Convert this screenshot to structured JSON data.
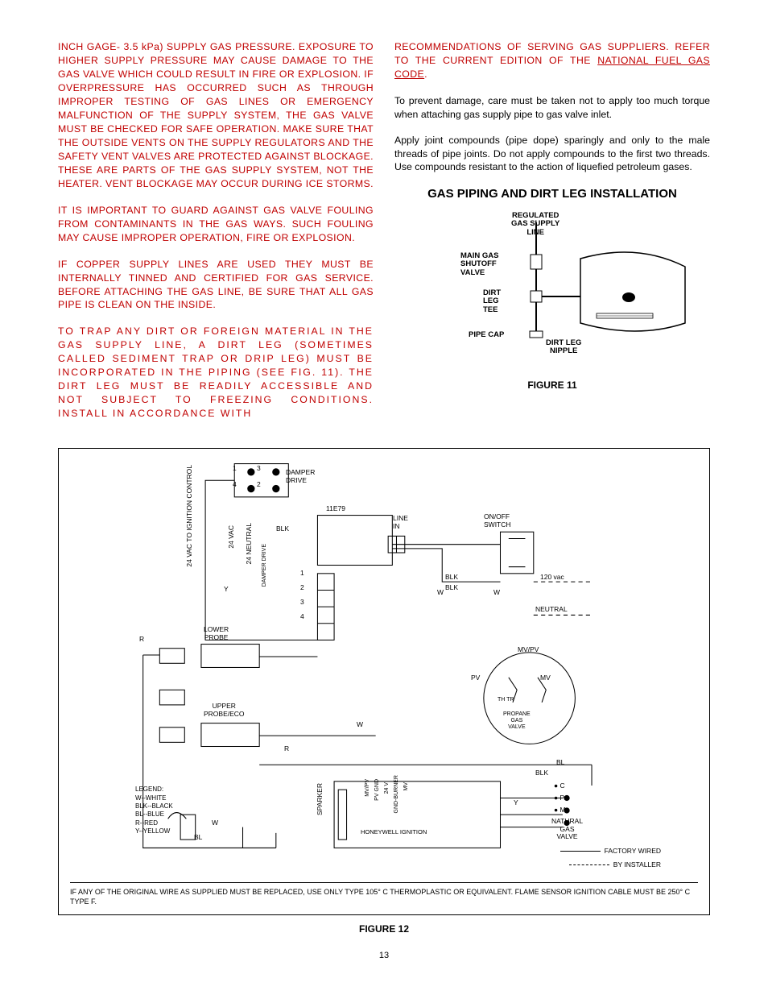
{
  "left_column": {
    "p1": "INCH GAGE- 3.5 kPa) SUPPLY GAS PRESSURE.  EXPOSURE TO HIGHER SUPPLY PRESSURE MAY CAUSE DAMAGE TO THE GAS VALVE WHICH COULD RESULT IN FIRE OR EXPLOSION.  IF OVERPRESSURE HAS OCCURRED SUCH AS THROUGH IMPROPER TESTING OF GAS LINES OR EMERGENCY MALFUNCTION OF THE SUPPLY SYSTEM, THE GAS VALVE MUST BE CHECKED FOR SAFE OPERATION.  MAKE SURE THAT THE OUTSIDE VENTS ON THE SUPPLY REGULATORS AND THE SAFETY  VENT VALVES ARE PROTECTED AGAINST BLOCKAGE.  THESE ARE PARTS OF THE GAS SUPPLY SYSTEM, NOT THE HEATER.  VENT BLOCKAGE MAY OCCUR DURING ICE STORMS.",
    "p2": "IT IS IMPORTANT TO GUARD AGAINST GAS VALVE FOULING FROM CONTAMINANTS IN THE GAS WAYS.  SUCH FOULING MAY CAUSE IMPROPER OPERATION, FIRE OR EXPLOSION.",
    "p3": "IF COPPER SUPPLY LINES ARE USED THEY MUST BE INTERNALLY TINNED AND CERTIFIED FOR GAS SERVICE.  BEFORE ATTACHING THE GAS LINE, BE SURE THAT ALL GAS PIPE IS CLEAN ON THE INSIDE.",
    "p4": "TO TRAP ANY DIRT OR FOREIGN MATERIAL IN THE GAS SUPPLY LINE, A DIRT LEG (SOMETIMES CALLED SEDIMENT TRAP OR DRIP LEG) MUST BE INCORPORATED IN THE PIPING (SEE FIG. 11).  THE DIRT LEG MUST BE READILY ACCESSIBLE AND NOT SUBJECT TO FREEZING CONDITIONS.  INSTALL IN ACCORDANCE WITH"
  },
  "right_column": {
    "p1_a": "RECOMMENDATIONS OF SERVING GAS SUPPLIERS.  REFER TO THE CURRENT EDITION OF THE ",
    "p1_b": "NATIONAL FUEL GAS CODE",
    "p1_c": ".",
    "p2": "To prevent damage, care must be taken not to apply too much torque when attaching gas supply pipe to gas valve inlet.",
    "p3": "Apply joint compounds (pipe dope) sparingly and only to the male threads of pipe joints.  Do not apply compounds to the first two threads.  Use compounds resistant to the action of liquefied petroleum gases.",
    "heading": "GAS PIPING AND DIRT LEG INSTALLATION",
    "fig11_caption": "FIGURE 11",
    "fig11_labels": {
      "regulated": "REGULATED\nGAS SUPPLY\nLINE",
      "main_gas": "MAIN GAS\nSHUTOFF\nVALVE",
      "dirt_leg_tee": "DIRT\nLEG\nTEE",
      "pipe_cap": "PIPE CAP",
      "dirt_leg_nipple": "DIRT LEG\nNIPPLE"
    }
  },
  "figure12": {
    "caption": "FIGURE 12",
    "labels": {
      "vac_ignition": "24 VAC TO IGNITION CONTROL",
      "damper_drive": "DAMPER\nDRIVE",
      "module": "11E79",
      "line_in": "LINE\nIN",
      "on_off": "ON/OFF\nSWITCH",
      "vac24": "24 VAC",
      "neutral24": "24 NEUTRAL",
      "damper_drive_v": "DAMPER DRIVE",
      "blk": "BLK",
      "lower_probe": "LOWER\nPROBE",
      "upper_probe": "UPPER\nPROBE/ECO",
      "mvpv": "MV/PV",
      "pv": "PV",
      "mv": "MV",
      "th_tr": "TH TR",
      "propane": "PROPANE\nGAS\nVALVE",
      "sparker": "SPARKER",
      "gnd_burner": "GND-BURNER",
      "v24": "24 V",
      "pv_gnd": "PV GND",
      "honeywell": "HONEYWELL IGNITION",
      "natural": "NATURAL\nGAS\nVALVE",
      "factory": "FACTORY WIRED",
      "installer": "BY INSTALLER",
      "vac120": "120 vac",
      "neutral": "NEUTRAL",
      "w": "W",
      "y": "Y",
      "r": "R",
      "bl": "BL",
      "c": "C",
      "p": "P",
      "m": "M",
      "nums": [
        "1",
        "2",
        "3",
        "4"
      ]
    },
    "legend": {
      "title": "LEGEND:",
      "lines": [
        "W--WHITE",
        "BLK--BLACK",
        "BL--BLUE",
        "R--RED",
        "Y--YELLOW"
      ]
    },
    "note": "IF ANY OF THE ORIGINAL WIRE AS SUPPLIED MUST BE REPLACED, USE ONLY TYPE 105° C THERMOPLASTIC OR EQUIVALENT. FLAME SENSOR IGNITION CABLE MUST BE 250° C TYPE F."
  },
  "page_number": "13",
  "colors": {
    "warning": "#c00000",
    "text": "#000000",
    "background": "#ffffff"
  }
}
